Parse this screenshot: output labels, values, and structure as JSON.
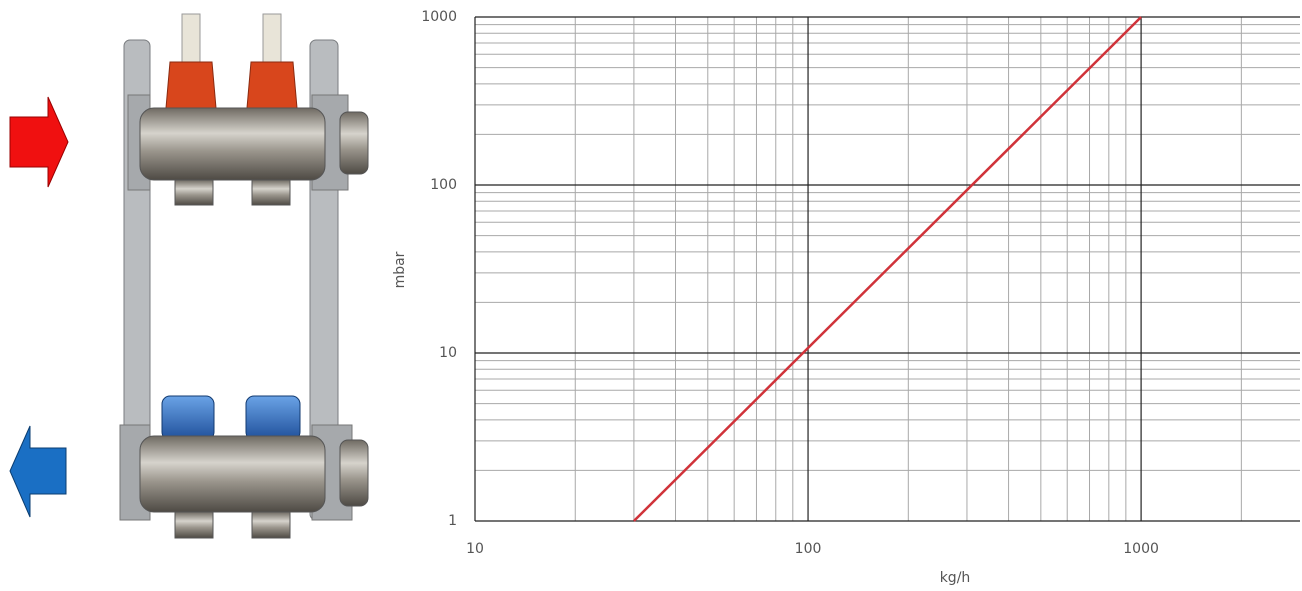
{
  "chart_data": {
    "type": "line",
    "x_label": "kg/h",
    "y_label": "mbar",
    "log_x": true,
    "log_y": true,
    "grid": true,
    "minor_grid": true,
    "xlim": [
      10,
      3000
    ],
    "ylim": [
      1,
      1000
    ],
    "xticks": [
      10,
      100,
      1000
    ],
    "yticks": [
      1,
      10,
      100,
      1000
    ],
    "series": [
      {
        "color": "#d0333a",
        "x": [
          30,
          1000
        ],
        "values": [
          1,
          1000
        ]
      }
    ]
  }
}
